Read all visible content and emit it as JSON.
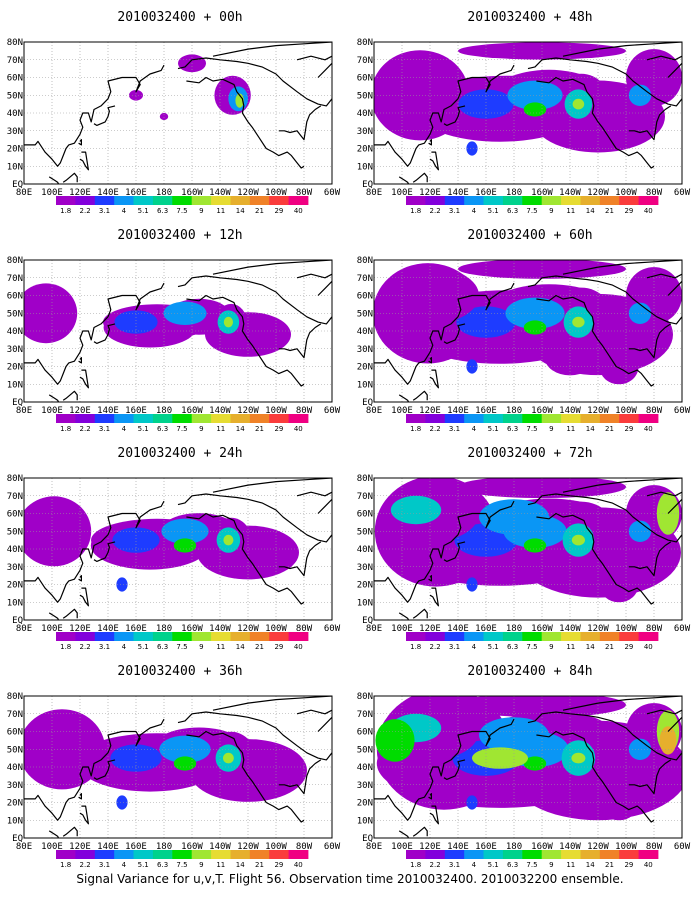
{
  "figure": {
    "caption": "Signal Variance for u,v,T. Flight 56. Observation time 2010032400. 2010032200 ensemble."
  },
  "panels": [
    {
      "title": "2010032400 + 00h",
      "lead": 0
    },
    {
      "title": "2010032400 + 12h",
      "lead": 12
    },
    {
      "title": "2010032400 + 24h",
      "lead": 24
    },
    {
      "title": "2010032400 + 36h",
      "lead": 36
    },
    {
      "title": "2010032400 + 48h",
      "lead": 48
    },
    {
      "title": "2010032400 + 60h",
      "lead": 60
    },
    {
      "title": "2010032400 + 72h",
      "lead": 72
    },
    {
      "title": "2010032400 + 84h",
      "lead": 84
    }
  ],
  "map": {
    "lon_labels": [
      "80E",
      "100E",
      "120E",
      "140E",
      "160E",
      "180",
      "160W",
      "140W",
      "120W",
      "100W",
      "80W",
      "60W"
    ],
    "lat_labels": [
      "EQ",
      "10N",
      "20N",
      "30N",
      "40N",
      "50N",
      "60N",
      "70N",
      "80N"
    ]
  },
  "colorbar": {
    "labels": [
      "1.8",
      "2.2",
      "3.1",
      "4",
      "5.1",
      "6.3",
      "7.5",
      "9",
      "11",
      "14",
      "21",
      "29",
      "40"
    ],
    "colors": [
      "#a000c8",
      "#8200dc",
      "#1e3cff",
      "#0a96f5",
      "#00c8c8",
      "#00d28c",
      "#00dc00",
      "#a0e632",
      "#e6dc32",
      "#e6af2d",
      "#f08228",
      "#fa3c3c",
      "#f00082"
    ]
  },
  "colors": {
    "background": "#ffffff",
    "coastline": "#000000",
    "grid": "#9a9a9a"
  }
}
